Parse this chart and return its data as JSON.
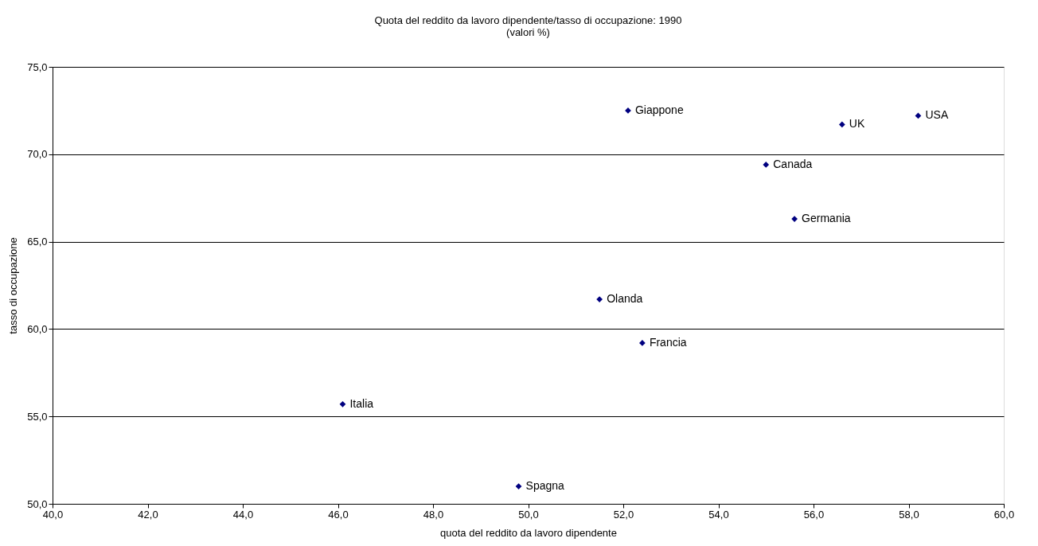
{
  "chart_data": {
    "type": "scatter",
    "title": "Quota del reddito da lavoro dipendente/tasso di occupazione: 1990",
    "subtitle": "(valori %)",
    "xlabel": "quota del reddito da lavoro dipendente",
    "ylabel": "tasso di occupazione",
    "x": [
      52.1,
      58.2,
      56.6,
      55.0,
      55.6,
      51.5,
      52.4,
      46.1,
      49.8
    ],
    "series": [
      {
        "color": "#000080",
        "values": [
          72.5,
          72.2,
          71.7,
          69.4,
          66.3,
          61.7,
          59.2,
          55.7,
          51.0
        ]
      }
    ],
    "annotations": [
      {
        "text": "Giappone",
        "x": 52.1,
        "y": 72.5
      },
      {
        "text": "USA",
        "x": 58.2,
        "y": 72.2
      },
      {
        "text": "UK",
        "x": 56.6,
        "y": 71.7
      },
      {
        "text": "Canada",
        "x": 55.0,
        "y": 69.4
      },
      {
        "text": "Germania",
        "x": 55.6,
        "y": 66.3
      },
      {
        "text": "Olanda",
        "x": 51.5,
        "y": 61.7
      },
      {
        "text": "Francia",
        "x": 52.4,
        "y": 59.2
      },
      {
        "text": "Italia",
        "x": 46.1,
        "y": 55.7
      },
      {
        "text": "Spagna",
        "x": 49.8,
        "y": 51.0
      }
    ],
    "xlim": [
      40,
      60
    ],
    "xticks": [
      {
        "value": 40,
        "label": "40,0"
      },
      {
        "value": 42,
        "label": "42,0"
      },
      {
        "value": 44,
        "label": "44,0"
      },
      {
        "value": 46,
        "label": "46,0"
      },
      {
        "value": 48,
        "label": "48,0"
      },
      {
        "value": 50,
        "label": "50,0"
      },
      {
        "value": 52,
        "label": "52,0"
      },
      {
        "value": 54,
        "label": "54,0"
      },
      {
        "value": 56,
        "label": "56,0"
      },
      {
        "value": 58,
        "label": "58,0"
      },
      {
        "value": 60,
        "label": "60,0"
      }
    ],
    "ylim": [
      50,
      75
    ],
    "yticks": [
      {
        "value": 50,
        "label": "50,0"
      },
      {
        "value": 55,
        "label": "55,0"
      },
      {
        "value": 60,
        "label": "60,0"
      },
      {
        "value": 65,
        "label": "65,0"
      },
      {
        "value": 70,
        "label": "70,0"
      },
      {
        "value": 75,
        "label": "75,0"
      }
    ],
    "grid": "y",
    "marker": "diamond"
  }
}
